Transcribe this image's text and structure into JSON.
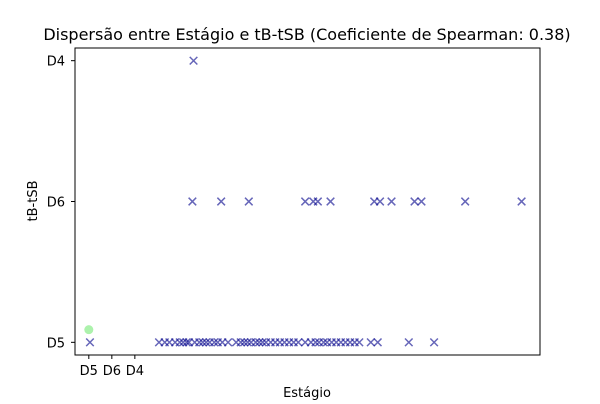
{
  "chart_data": {
    "type": "scatter",
    "title": "Dispersão entre Estágio e tB-tSB (Coeficiente de Spearman: 0.38)",
    "xlabel": "Estágio",
    "ylabel": "tB-tSB",
    "x_tick_labels": [
      "D5",
      "D6",
      "D4"
    ],
    "y_tick_labels": [
      "D5",
      "D6",
      "D4"
    ],
    "grid": false,
    "x_range": [
      -0.6,
      19.6
    ],
    "y_range": [
      -0.09,
      2.09
    ],
    "colors": {
      "cross": "#00008b",
      "circle": "#90ee90"
    },
    "series": [
      {
        "marker": "circle",
        "points": [
          {
            "x": 0,
            "y": 0.09
          }
        ]
      },
      {
        "marker": "x",
        "points": [
          {
            "x": 0.05,
            "y": 0
          },
          {
            "x": 3.05,
            "y": 0
          },
          {
            "x": 3.3,
            "y": 0
          },
          {
            "x": 3.5,
            "y": 0
          },
          {
            "x": 3.75,
            "y": 0
          },
          {
            "x": 3.95,
            "y": 0
          },
          {
            "x": 4.1,
            "y": 0
          },
          {
            "x": 4.25,
            "y": 0
          },
          {
            "x": 4.35,
            "y": 0
          },
          {
            "x": 4.6,
            "y": 0
          },
          {
            "x": 4.8,
            "y": 0
          },
          {
            "x": 4.95,
            "y": 0
          },
          {
            "x": 5.1,
            "y": 0
          },
          {
            "x": 5.25,
            "y": 0
          },
          {
            "x": 5.45,
            "y": 0
          },
          {
            "x": 5.6,
            "y": 0
          },
          {
            "x": 5.8,
            "y": 0
          },
          {
            "x": 6.05,
            "y": 0
          },
          {
            "x": 6.4,
            "y": 0
          },
          {
            "x": 6.6,
            "y": 0
          },
          {
            "x": 6.75,
            "y": 0
          },
          {
            "x": 6.9,
            "y": 0
          },
          {
            "x": 7.05,
            "y": 0
          },
          {
            "x": 7.25,
            "y": 0
          },
          {
            "x": 7.4,
            "y": 0
          },
          {
            "x": 7.55,
            "y": 0
          },
          {
            "x": 7.7,
            "y": 0
          },
          {
            "x": 7.9,
            "y": 0
          },
          {
            "x": 8.1,
            "y": 0
          },
          {
            "x": 8.3,
            "y": 0
          },
          {
            "x": 8.5,
            "y": 0
          },
          {
            "x": 8.7,
            "y": 0
          },
          {
            "x": 8.9,
            "y": 0
          },
          {
            "x": 9.1,
            "y": 0
          },
          {
            "x": 9.4,
            "y": 0
          },
          {
            "x": 9.65,
            "y": 0
          },
          {
            "x": 9.85,
            "y": 0
          },
          {
            "x": 10.0,
            "y": 0
          },
          {
            "x": 10.2,
            "y": 0
          },
          {
            "x": 10.35,
            "y": 0
          },
          {
            "x": 10.55,
            "y": 0
          },
          {
            "x": 10.75,
            "y": 0
          },
          {
            "x": 10.95,
            "y": 0
          },
          {
            "x": 11.15,
            "y": 0
          },
          {
            "x": 11.35,
            "y": 0
          },
          {
            "x": 11.55,
            "y": 0
          },
          {
            "x": 11.75,
            "y": 0
          },
          {
            "x": 12.25,
            "y": 0
          },
          {
            "x": 12.55,
            "y": 0
          },
          {
            "x": 13.9,
            "y": 0
          },
          {
            "x": 15.0,
            "y": 0
          },
          {
            "x": 4.5,
            "y": 1
          },
          {
            "x": 5.75,
            "y": 1
          },
          {
            "x": 6.95,
            "y": 1
          },
          {
            "x": 9.4,
            "y": 1
          },
          {
            "x": 9.75,
            "y": 1
          },
          {
            "x": 9.95,
            "y": 1
          },
          {
            "x": 10.5,
            "y": 1
          },
          {
            "x": 12.4,
            "y": 1
          },
          {
            "x": 12.65,
            "y": 1
          },
          {
            "x": 13.15,
            "y": 1
          },
          {
            "x": 14.15,
            "y": 1
          },
          {
            "x": 14.45,
            "y": 1
          },
          {
            "x": 16.35,
            "y": 1
          },
          {
            "x": 18.8,
            "y": 1
          },
          {
            "x": 4.55,
            "y": 2
          }
        ]
      }
    ]
  }
}
